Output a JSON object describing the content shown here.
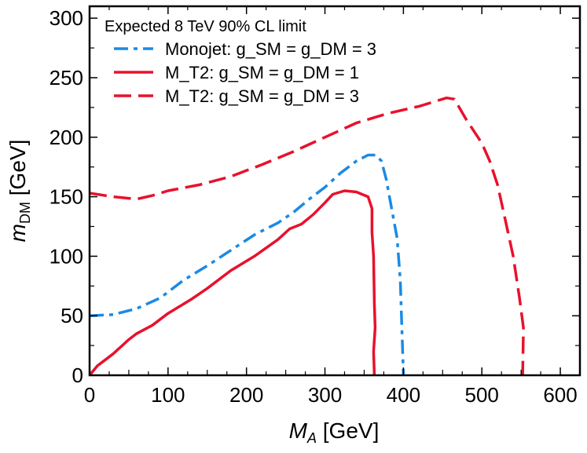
{
  "chart_data": {
    "type": "line",
    "xlabel": "M_A [GeV]",
    "ylabel": "m_DM [GeV]",
    "xlim": [
      0,
      625
    ],
    "ylim": [
      0,
      310
    ],
    "xticks": [
      0,
      100,
      200,
      300,
      400,
      500,
      600
    ],
    "yticks": [
      0,
      50,
      100,
      150,
      200,
      250,
      300
    ],
    "grid": false,
    "legend_title": "Expected 8 TeV 90% CL limit",
    "legend_placement": "top-left",
    "series": [
      {
        "name": "Monojet: g_SM = g_DM = 3",
        "color": "#1a8ae6",
        "style": "dashdot",
        "x": [
          0,
          30,
          60,
          90,
          120,
          150,
          180,
          210,
          240,
          260,
          280,
          300,
          320,
          340,
          355,
          365,
          372,
          378,
          385,
          392,
          396,
          398,
          400
        ],
        "y": [
          50,
          51,
          56,
          65,
          80,
          92,
          105,
          118,
          128,
          137,
          148,
          158,
          170,
          180,
          185,
          185,
          180,
          165,
          140,
          115,
          80,
          40,
          0
        ]
      },
      {
        "name": "M_T2: g_SM = g_DM = 1",
        "color": "#e8112d",
        "style": "solid",
        "x": [
          0,
          10,
          30,
          50,
          60,
          80,
          100,
          130,
          150,
          180,
          210,
          240,
          255,
          270,
          285,
          300,
          310,
          325,
          340,
          355,
          360,
          360,
          362,
          363,
          364,
          362,
          363
        ],
        "y": [
          0,
          8,
          18,
          30,
          35,
          42,
          52,
          64,
          73,
          88,
          100,
          114,
          123,
          127,
          135,
          145,
          152,
          155,
          154,
          150,
          140,
          120,
          100,
          60,
          40,
          20,
          0
        ]
      },
      {
        "name": "M_T2: g_SM = g_DM = 3",
        "color": "#e8112d",
        "style": "dashed",
        "x": [
          0,
          30,
          60,
          80,
          100,
          140,
          180,
          220,
          260,
          300,
          340,
          380,
          420,
          455,
          465,
          480,
          500,
          510,
          520,
          530,
          540,
          548,
          553,
          552
        ],
        "y": [
          153,
          150,
          148,
          151,
          155,
          160,
          167,
          177,
          188,
          200,
          212,
          220,
          226,
          233,
          232,
          215,
          195,
          180,
          160,
          130,
          100,
          65,
          40,
          0
        ]
      }
    ]
  }
}
